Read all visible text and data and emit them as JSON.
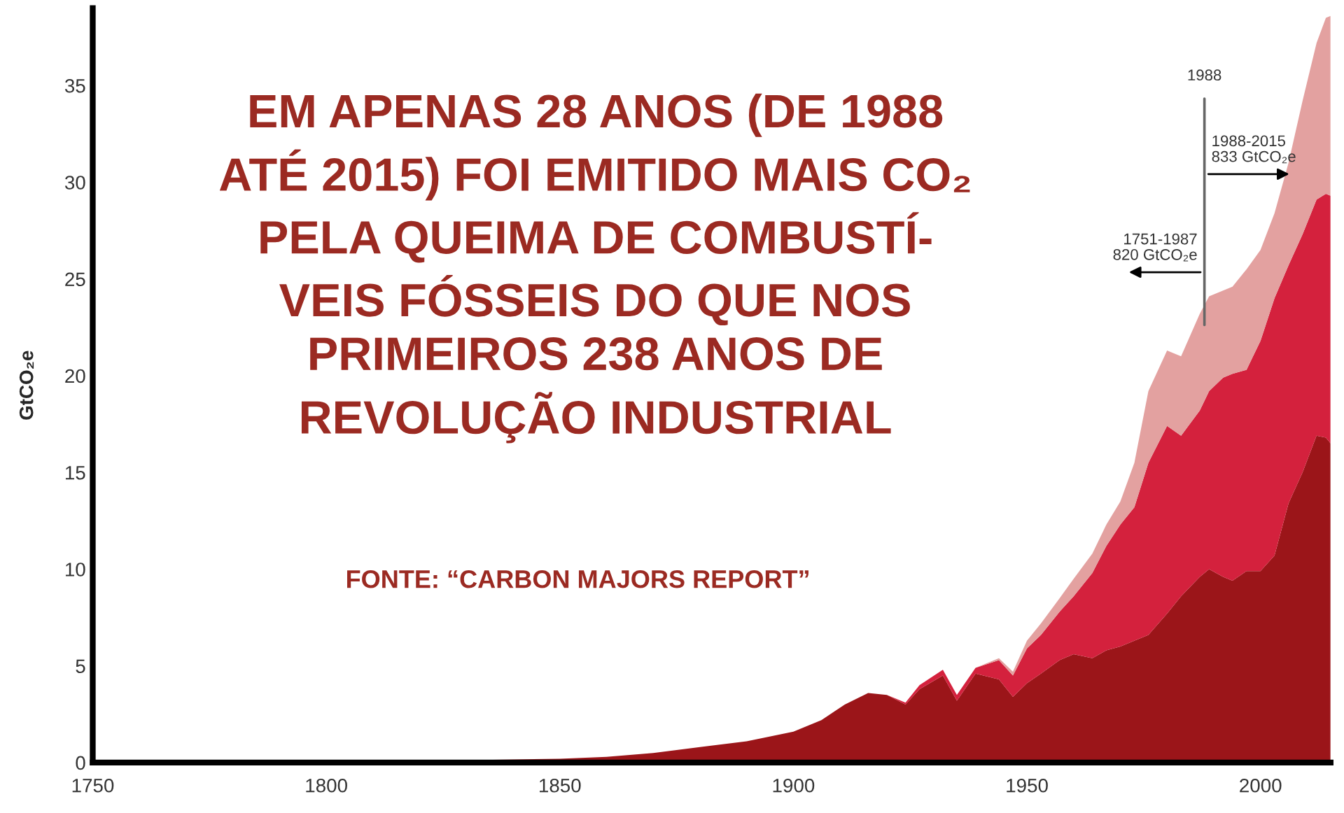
{
  "chart_data": {
    "type": "area",
    "stacked": true,
    "title": "EM APENAS 28 ANOS (DE 1988\nATÉ 2015) FOI EMITIDO MAIS CO₂\nPELA QUEIMA DE COMBUSTÍ-\nVEIS FÓSSEIS DO QUE NOS\nPRIMEIROS 238 ANOS DE\nREVOLUÇÃO INDUSTRIAL",
    "ylabel": "GtCO₂e",
    "x": [
      1750,
      1800,
      1850,
      1860,
      1870,
      1880,
      1890,
      1900,
      1906,
      1911,
      1916,
      1920,
      1924,
      1927,
      1932,
      1935,
      1939,
      1944,
      1947,
      1950,
      1953,
      1957,
      1960,
      1964,
      1967,
      1970,
      1973,
      1976,
      1980,
      1983,
      1987,
      1989,
      1992,
      1994,
      1997,
      2000,
      2003,
      2006,
      2009,
      2012,
      2014,
      2015
    ],
    "series": [
      {
        "color": "#9b1519",
        "values": [
          0,
          0,
          0.2,
          0.3,
          0.5,
          0.8,
          1.1,
          1.6,
          2.2,
          3.0,
          3.6,
          3.5,
          3.0,
          3.8,
          4.5,
          3.2,
          4.6,
          4.3,
          3.4,
          4.1,
          4.6,
          5.3,
          5.6,
          5.4,
          5.8,
          6.0,
          6.3,
          6.6,
          7.7,
          8.6,
          9.6,
          10.0,
          9.6,
          9.4,
          9.9,
          9.9,
          10.7,
          13.4,
          15.0,
          16.9,
          16.8,
          16.5
        ]
      },
      {
        "color": "#d4213d",
        "values": [
          0,
          0,
          0,
          0,
          0,
          0,
          0,
          0,
          0,
          0,
          0,
          0,
          0.1,
          0.2,
          0.3,
          0.3,
          0.3,
          1.0,
          1.1,
          1.8,
          2.0,
          2.5,
          3.0,
          4.4,
          5.4,
          6.3,
          6.9,
          8.9,
          9.7,
          8.3,
          8.6,
          9.2,
          10.3,
          10.7,
          10.4,
          11.9,
          13.3,
          12.3,
          12.3,
          12.2,
          12.6,
          12.8
        ]
      },
      {
        "color": "#e3a1a0",
        "values": [
          0,
          0,
          0,
          0,
          0,
          0,
          0,
          0,
          0,
          0,
          0,
          0,
          0,
          0,
          0,
          0,
          0,
          0.1,
          0.2,
          0.4,
          0.6,
          0.7,
          0.9,
          1.0,
          1.1,
          1.2,
          2.3,
          3.7,
          3.9,
          4.1,
          5.0,
          4.9,
          4.5,
          4.5,
          5.2,
          4.7,
          4.4,
          5.3,
          6.9,
          8.1,
          9.1,
          9.3
        ]
      }
    ],
    "xlim": [
      1750,
      2015
    ],
    "ylim": [
      0,
      39
    ],
    "xticks": [
      1750,
      1800,
      1850,
      1900,
      1950,
      2000
    ],
    "yticks": [
      0,
      5,
      10,
      15,
      20,
      25,
      30,
      35
    ],
    "grid": false,
    "legend": false,
    "ref_lines": [
      {
        "axis": "x",
        "value": 1988,
        "label": "1988",
        "color": "#666666"
      }
    ],
    "annotations": [
      "1988-2015\n833 GtCO₂e",
      "1751-1987\n820 GtCO₂e",
      "FONTE: “CARBON MAJORS REPORT”"
    ]
  }
}
